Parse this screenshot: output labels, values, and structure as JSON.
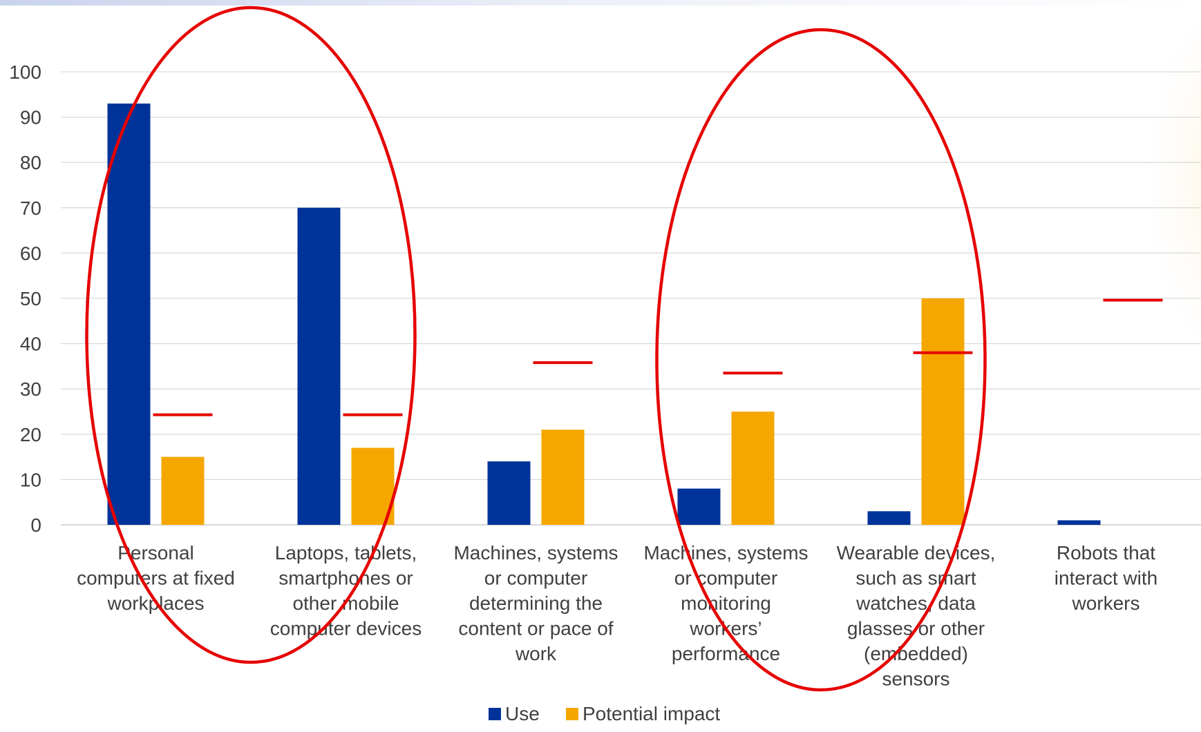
{
  "chart_data": {
    "type": "bar",
    "title": "",
    "xlabel": "",
    "ylabel": "",
    "ylim": [
      0,
      100
    ],
    "yticks": [
      0,
      10,
      20,
      30,
      40,
      50,
      60,
      70,
      80,
      90,
      100
    ],
    "grid": true,
    "legend_position": "bottom",
    "categories": [
      [
        "Personal",
        "computers at fixed",
        "workplaces"
      ],
      [
        "Laptops, tablets,",
        "smartphones or",
        "other mobile",
        "computer devices"
      ],
      [
        "Machines, systems",
        "or computer",
        "determining the",
        "content or pace of",
        "work"
      ],
      [
        "Machines, systems",
        "or computer",
        "monitoring",
        "workers’",
        "performance"
      ],
      [
        "Wearable devices,",
        "such as smart",
        "watches, data",
        "glasses or other",
        "(embedded)",
        "sensors"
      ],
      [
        "Robots that",
        "interact with",
        "workers"
      ]
    ],
    "series": [
      {
        "name": "Use",
        "color": "#003399",
        "values": [
          93,
          70,
          14,
          8,
          3,
          1
        ]
      },
      {
        "name": "Potential impact",
        "color": "#f5a700",
        "values": [
          15,
          17,
          21,
          25,
          50,
          null
        ]
      }
    ],
    "markers": {
      "color": "#e60000",
      "values": [
        24.3,
        24.3,
        35.8,
        33.5,
        38,
        49.6
      ]
    },
    "highlight_ellipses": {
      "color": "#e60000",
      "groups": [
        [
          0,
          1
        ],
        [
          3,
          4
        ]
      ]
    }
  }
}
